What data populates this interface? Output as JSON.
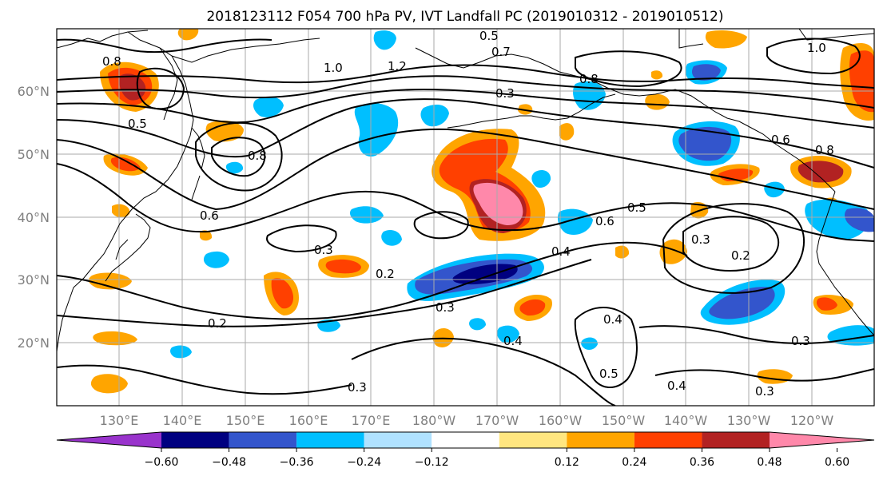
{
  "title": "2018123112 F054 700 hPa PV, IVT Landfall PC (2019010312 - 2019010512)",
  "lat_labels": [
    "60°N",
    "50°N",
    "40°N",
    "30°N",
    "20°N"
  ],
  "lon_labels": [
    "130°E",
    "140°E",
    "150°E",
    "160°E",
    "170°E",
    "180°W",
    "170°W",
    "160°W",
    "150°W",
    "140°W",
    "130°W",
    "120°W"
  ],
  "colorbar": {
    "colors": [
      "#9933cc",
      "#000080",
      "#3355cc",
      "#00bfff",
      "#b0e2ff",
      "#ffffff",
      "#ffe680",
      "#ffa500",
      "#ff4000",
      "#b22222",
      "#ff88aa"
    ],
    "tick_labels": [
      "−0.60",
      "−0.48",
      "−0.36",
      "−0.24",
      "−0.12",
      "0.12",
      "0.24",
      "0.36",
      "0.48",
      "0.60"
    ]
  },
  "contour_labels": [
    "0.2",
    "0.2",
    "0.2",
    "0.3",
    "0.3",
    "0.3",
    "0.3",
    "0.3",
    "0.3",
    "0.3",
    "0.4",
    "0.4",
    "0.4",
    "0.4",
    "0.5",
    "0.5",
    "0.5",
    "0.5",
    "0.6",
    "0.6",
    "0.6",
    "0.7",
    "0.8",
    "0.8",
    "0.8",
    "0.8",
    "1.0",
    "1.0",
    "1.2"
  ]
}
